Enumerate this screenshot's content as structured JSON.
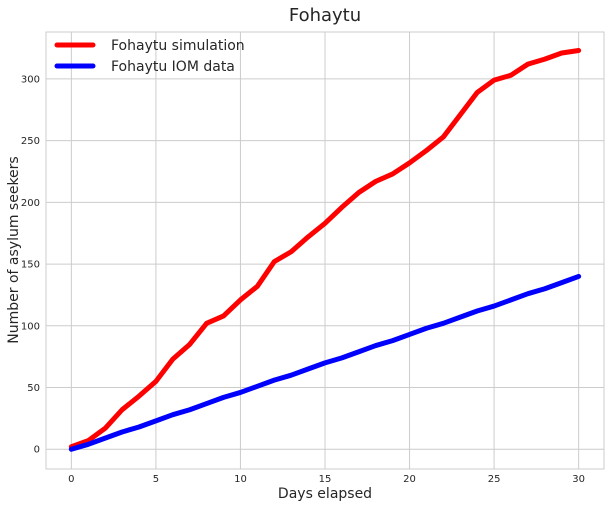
{
  "chart_data": {
    "type": "line",
    "title": "Fohaytu",
    "xlabel": "Days elapsed",
    "ylabel": "Number of asylum seekers",
    "xlim": [
      -1.5,
      31.5
    ],
    "ylim": [
      -16,
      338
    ],
    "xticks": [
      0,
      5,
      10,
      15,
      20,
      25,
      30
    ],
    "yticks": [
      0,
      50,
      100,
      150,
      200,
      250,
      300
    ],
    "grid": true,
    "legend_position": "top-left",
    "x": [
      0,
      1,
      2,
      3,
      4,
      5,
      6,
      7,
      8,
      9,
      10,
      11,
      12,
      13,
      14,
      15,
      16,
      17,
      18,
      19,
      20,
      21,
      22,
      23,
      24,
      25,
      26,
      27,
      28,
      29,
      30
    ],
    "series": [
      {
        "name": "Fohaytu simulation",
        "color": "#ff0000",
        "values": [
          2,
          7,
          17,
          32,
          43,
          55,
          73,
          85,
          102,
          108,
          121,
          132,
          152,
          160,
          172,
          183,
          196,
          208,
          217,
          223,
          232,
          242,
          253,
          271,
          289,
          299,
          303,
          312,
          316,
          321,
          323
        ]
      },
      {
        "name": "Fohaytu IOM data",
        "color": "#0000ff",
        "values": [
          0,
          4,
          9,
          14,
          18,
          23,
          28,
          32,
          37,
          42,
          46,
          51,
          56,
          60,
          65,
          70,
          74,
          79,
          84,
          88,
          93,
          98,
          102,
          107,
          112,
          116,
          121,
          126,
          130,
          135,
          140
        ]
      }
    ]
  }
}
